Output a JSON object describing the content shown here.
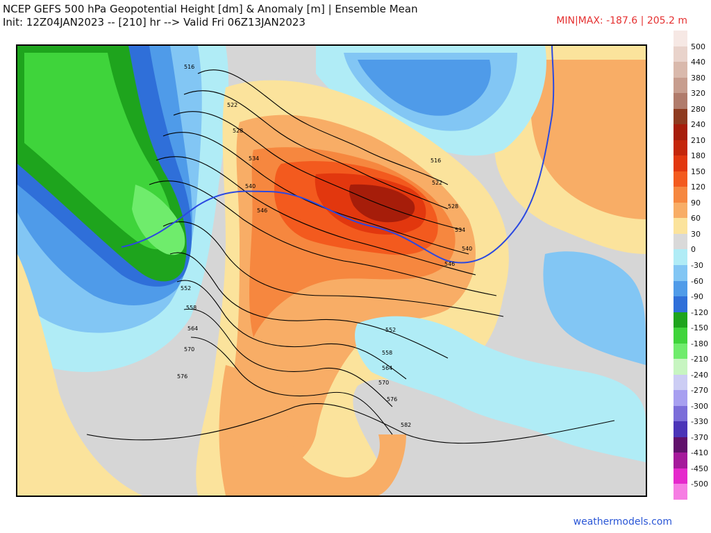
{
  "header": {
    "title_line1": "NCEP GEFS 500 hPa Geopotential Height [dm] & Anomaly [m] | Ensemble Mean",
    "title_line2": "Init: 12Z04JAN2023 -- [210] hr --> Valid Fri 06Z13JAN2023",
    "minmax": "MIN|MAX: -187.6 | 205.2 m"
  },
  "colorbar": {
    "labels": [
      "500",
      "440",
      "380",
      "320",
      "280",
      "240",
      "210",
      "180",
      "150",
      "120",
      "90",
      "60",
      "30",
      "0",
      "-30",
      "-60",
      "-90",
      "-120",
      "-150",
      "-180",
      "-210",
      "-240",
      "-270",
      "-300",
      "-330",
      "-370",
      "-410",
      "-450",
      "-500"
    ],
    "colors": [
      "#f6e8e4",
      "#e9d3cb",
      "#d9b9ac",
      "#c79d8e",
      "#b07b6b",
      "#8e3a1f",
      "#a61d0a",
      "#c4260a",
      "#e2370e",
      "#f35a1e",
      "#f6873f",
      "#f8ad66",
      "#fbe39c",
      "#d9d9d9",
      "#b0ecf6",
      "#82c6f4",
      "#4f9be9",
      "#2f6fd9",
      "#1ea41d",
      "#3fd43b",
      "#6fec6c",
      "#c7f5c1",
      "#cccdf4",
      "#a79ff0",
      "#7b6dd9",
      "#4b34b8",
      "#61106c",
      "#a5199b",
      "#e529cc",
      "#f67de3"
    ]
  },
  "map": {
    "contour_labels": [
      "516",
      "522",
      "528",
      "534",
      "540",
      "546",
      "552",
      "558",
      "564",
      "570",
      "576",
      "582",
      "552",
      "558",
      "564",
      "570",
      "576",
      "516",
      "522",
      "528",
      "534",
      "540",
      "546"
    ]
  },
  "footer": {
    "credit": "weathermodels.com"
  }
}
